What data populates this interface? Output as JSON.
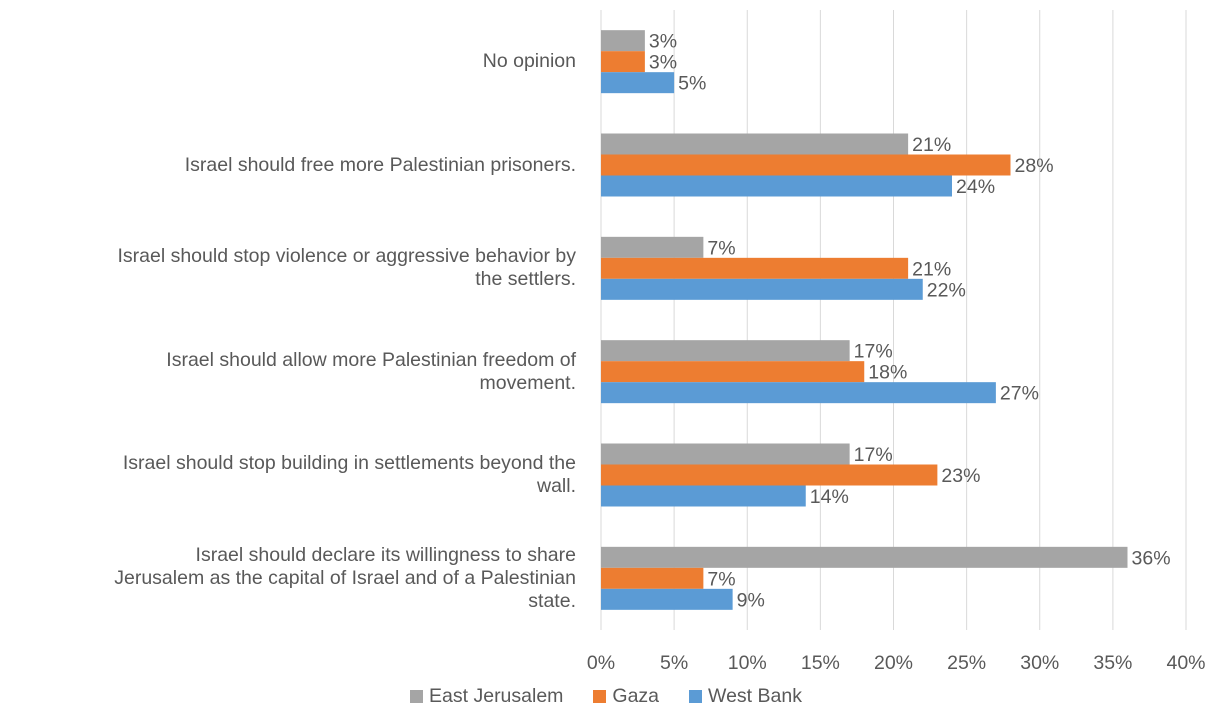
{
  "chart_data": {
    "type": "bar",
    "orientation": "horizontal",
    "categories": [
      "No opinion",
      "Israel should free more Palestinian prisoners.",
      "Israel should stop violence or aggressive behavior by the settlers.",
      "Israel should allow more Palestinian freedom of movement.",
      "Israel should stop building in settlements beyond the wall.",
      "Israel should declare its willingness to share Jerusalem as the capital of Israel and of a Palestinian state."
    ],
    "category_lines": [
      [
        "No opinion"
      ],
      [
        "Israel should free more Palestinian prisoners."
      ],
      [
        "Israel should stop violence or aggressive behavior by",
        "the settlers."
      ],
      [
        "Israel should allow more Palestinian freedom of",
        "movement."
      ],
      [
        "Israel should stop building in settlements beyond the",
        "wall."
      ],
      [
        "Israel should declare its willingness to share",
        "Jerusalem as the capital of Israel and of a Palestinian",
        "state."
      ]
    ],
    "series": [
      {
        "name": "East Jerusalem",
        "color": "#a5a5a5",
        "values": [
          3,
          21,
          7,
          17,
          17,
          36
        ]
      },
      {
        "name": "Gaza",
        "color": "#ed7d31",
        "values": [
          3,
          28,
          21,
          18,
          23,
          7
        ]
      },
      {
        "name": "West Bank",
        "color": "#5b9bd5",
        "values": [
          5,
          24,
          22,
          27,
          14,
          9
        ]
      }
    ],
    "value_suffix": "%",
    "xlim": [
      0,
      40
    ],
    "xticks": [
      0,
      5,
      10,
      15,
      20,
      25,
      30,
      35,
      40
    ],
    "xtick_labels": [
      "0%",
      "5%",
      "10%",
      "15%",
      "20%",
      "25%",
      "30%",
      "35%",
      "40%"
    ],
    "grid": true,
    "legend_position": "bottom",
    "title": "",
    "xlabel": "",
    "ylabel": ""
  }
}
